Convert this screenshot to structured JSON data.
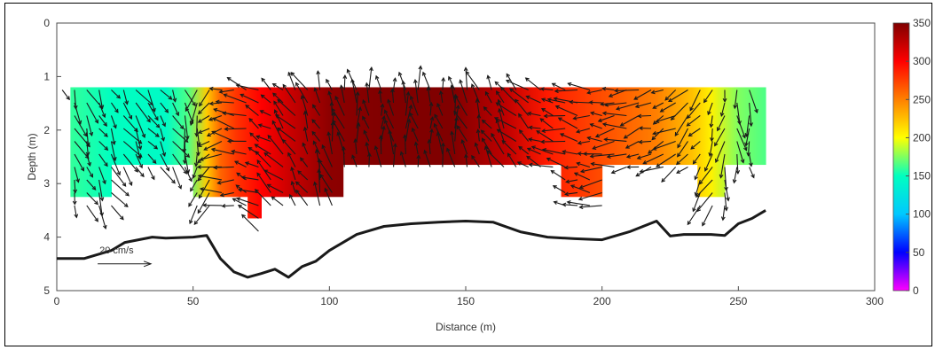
{
  "chart_data": {
    "type": "heatmap",
    "title": "",
    "xlabel": "Distance (m)",
    "ylabel": "Depth (m)",
    "xlim": [
      0,
      300
    ],
    "ylim": [
      0,
      5
    ],
    "y_reversed": true,
    "x_ticks": [
      0,
      50,
      100,
      150,
      200,
      250,
      300
    ],
    "y_ticks": [
      0,
      1,
      2,
      3,
      4,
      5
    ],
    "colorbar": {
      "min": 0,
      "max": 350,
      "ticks": [
        0,
        50,
        100,
        150,
        200,
        250,
        300,
        350
      ],
      "colormap": [
        "#ff00ff",
        "#0000ff",
        "#00c8ff",
        "#00ffc0",
        "#ffff00",
        "#ff8000",
        "#ff0000",
        "#800000"
      ]
    },
    "heatmap": {
      "x_start": 5,
      "x_end": 260,
      "depth_top": 1.2,
      "direction_profile": [
        {
          "x": 5,
          "deg": 160
        },
        {
          "x": 20,
          "deg": 150
        },
        {
          "x": 40,
          "deg": 145
        },
        {
          "x": 48,
          "deg": 165
        },
        {
          "x": 55,
          "deg": 220
        },
        {
          "x": 60,
          "deg": 260
        },
        {
          "x": 66,
          "deg": 280
        },
        {
          "x": 75,
          "deg": 300
        },
        {
          "x": 85,
          "deg": 320
        },
        {
          "x": 100,
          "deg": 345
        },
        {
          "x": 120,
          "deg": 355
        },
        {
          "x": 145,
          "deg": 350
        },
        {
          "x": 165,
          "deg": 325
        },
        {
          "x": 180,
          "deg": 290
        },
        {
          "x": 200,
          "deg": 270
        },
        {
          "x": 220,
          "deg": 250
        },
        {
          "x": 233,
          "deg": 225
        },
        {
          "x": 240,
          "deg": 205
        },
        {
          "x": 250,
          "deg": 175
        },
        {
          "x": 260,
          "deg": 165
        }
      ],
      "ensemble_bottoms": [
        {
          "x0": 5,
          "x1": 20,
          "depth": 3.25
        },
        {
          "x0": 20,
          "x1": 50,
          "depth": 2.65
        },
        {
          "x0": 50,
          "x1": 70,
          "depth": 3.25
        },
        {
          "x0": 70,
          "x1": 75,
          "depth": 3.65
        },
        {
          "x0": 75,
          "x1": 105,
          "depth": 3.25
        },
        {
          "x0": 105,
          "x1": 185,
          "depth": 2.65
        },
        {
          "x0": 185,
          "x1": 200,
          "depth": 3.25
        },
        {
          "x0": 200,
          "x1": 235,
          "depth": 2.65
        },
        {
          "x0": 235,
          "x1": 245,
          "depth": 3.25
        },
        {
          "x0": 245,
          "x1": 260,
          "depth": 2.65
        }
      ]
    },
    "bottom_profile": {
      "x": [
        0,
        10,
        20,
        25,
        35,
        40,
        50,
        55,
        60,
        65,
        70,
        75,
        80,
        85,
        90,
        95,
        100,
        110,
        120,
        130,
        140,
        150,
        160,
        170,
        180,
        190,
        200,
        210,
        220,
        225,
        230,
        240,
        245,
        250,
        255,
        260
      ],
      "depth": [
        4.4,
        4.4,
        4.25,
        4.1,
        4.0,
        4.02,
        4.0,
        3.97,
        4.4,
        4.65,
        4.75,
        4.68,
        4.6,
        4.75,
        4.55,
        4.45,
        4.25,
        3.95,
        3.8,
        3.75,
        3.72,
        3.7,
        3.72,
        3.9,
        4.0,
        4.03,
        4.05,
        3.9,
        3.7,
        3.98,
        3.95,
        3.95,
        3.97,
        3.75,
        3.65,
        3.5
      ]
    },
    "scale_arrow": {
      "label": "20 cm/s",
      "x": 15,
      "depth": 4.5,
      "speed": 20
    }
  }
}
